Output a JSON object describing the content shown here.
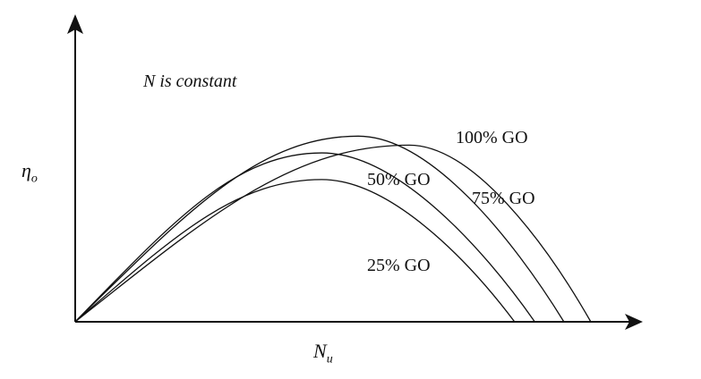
{
  "chart_data": {
    "type": "line",
    "title": "",
    "annotation": "N is constant",
    "xlabel": "N",
    "xlabel_sub": "u",
    "ylabel": "η",
    "ylabel_sub": "o",
    "xlim": [
      0,
      100
    ],
    "ylim": [
      0,
      100
    ],
    "grid": false,
    "series": [
      {
        "name": "25% GO",
        "start": [
          0,
          0
        ],
        "peak": [
          44,
          47.5
        ],
        "end": [
          78.4,
          0
        ]
      },
      {
        "name": "50% GO",
        "start": [
          0,
          0
        ],
        "peak": [
          44,
          56.4
        ],
        "end": [
          82,
          0
        ]
      },
      {
        "name": "75% GO",
        "start": [
          0,
          0
        ],
        "peak": [
          50.5,
          62
        ],
        "end": [
          87.2,
          0
        ]
      },
      {
        "name": "100% GO",
        "start": [
          0,
          0
        ],
        "peak": [
          59.6,
          59
        ],
        "end": [
          92,
          0
        ]
      }
    ],
    "color": "#111111"
  }
}
